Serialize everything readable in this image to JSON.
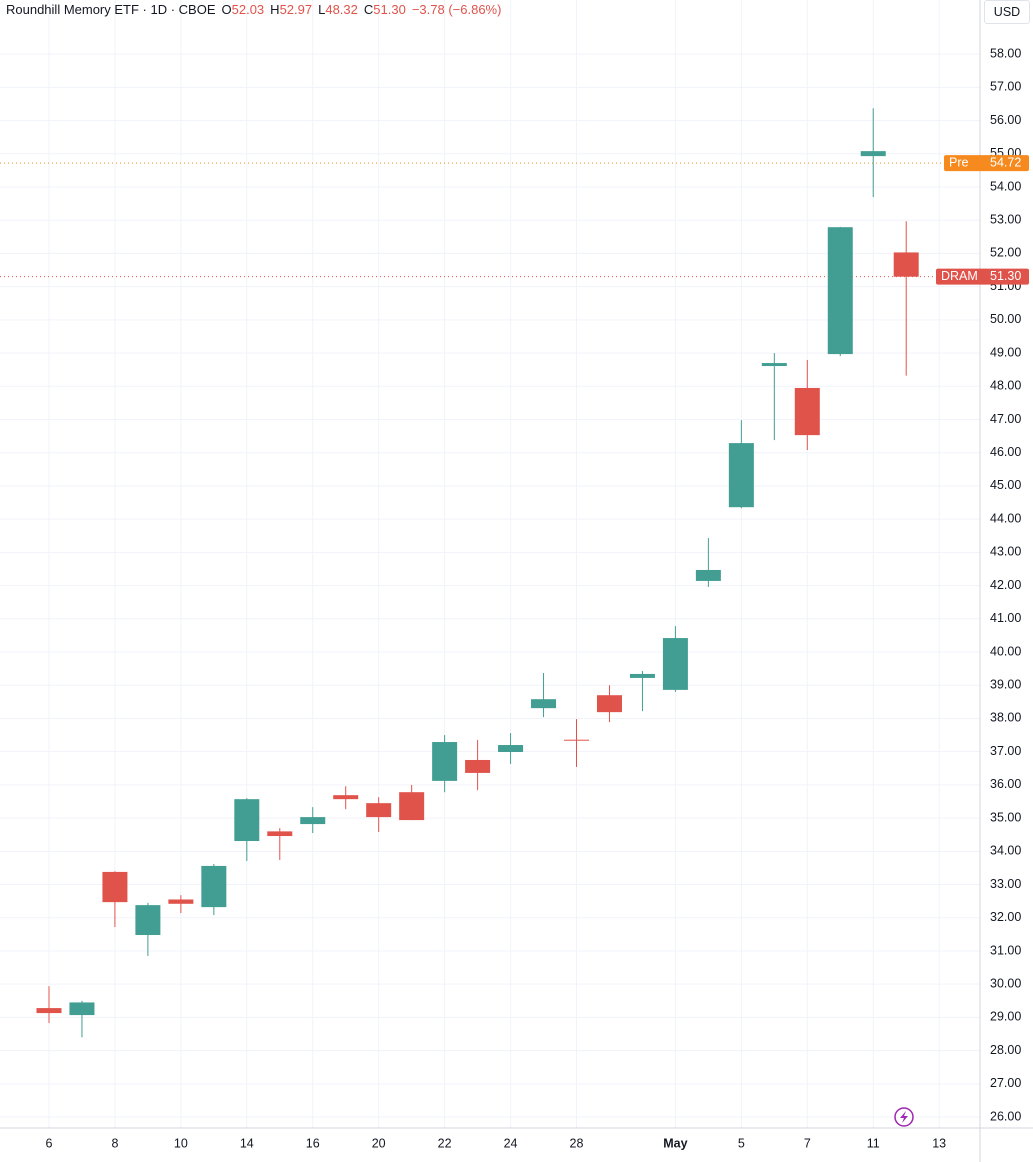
{
  "header": {
    "title": "Roundhill Memory ETF · 1D · CBOE",
    "ohlc": [
      {
        "key": "O",
        "value": "52.03"
      },
      {
        "key": "H",
        "value": "52.97"
      },
      {
        "key": "L",
        "value": "48.32"
      },
      {
        "key": "C",
        "value": "51.30"
      }
    ],
    "change": "−3.78 (−6.86%)"
  },
  "currency": "USD",
  "chart_data": {
    "type": "candlestick",
    "categories": [
      "6",
      null,
      "8",
      null,
      "10",
      null,
      "14",
      null,
      "16",
      null,
      "20",
      null,
      "22",
      null,
      "24",
      null,
      "28",
      null,
      null,
      "May",
      null,
      "5",
      null,
      "7",
      null,
      "11",
      null,
      "13"
    ],
    "open": [
      29.28,
      29.07,
      33.38,
      31.48,
      32.55,
      32.32,
      34.31,
      34.6,
      34.82,
      35.69,
      35.45,
      35.78,
      36.12,
      36.75,
      36.99,
      38.31,
      37.36,
      38.7,
      39.22,
      38.86,
      42.14,
      44.36,
      48.61,
      47.95,
      48.97,
      54.93,
      52.03,
      null
    ],
    "high": [
      29.94,
      29.5,
      33.4,
      32.45,
      32.68,
      33.62,
      35.6,
      34.7,
      35.33,
      35.96,
      35.63,
      36.0,
      37.5,
      37.35,
      37.56,
      39.37,
      37.98,
      39.0,
      39.43,
      40.78,
      43.43,
      46.98,
      49.0,
      48.79,
      52.8,
      56.37,
      52.97,
      null
    ],
    "low": [
      28.83,
      28.4,
      31.72,
      30.85,
      32.14,
      32.08,
      33.71,
      33.74,
      34.55,
      35.27,
      34.58,
      34.94,
      35.78,
      35.84,
      36.63,
      38.04,
      36.54,
      37.89,
      38.22,
      38.8,
      41.96,
      44.33,
      46.38,
      46.08,
      48.91,
      53.7,
      48.32,
      null
    ],
    "close": [
      29.13,
      29.45,
      32.47,
      32.38,
      32.42,
      33.56,
      35.57,
      34.46,
      35.03,
      35.57,
      35.03,
      34.94,
      37.29,
      36.36,
      37.2,
      38.58,
      37.34,
      38.19,
      39.34,
      40.42,
      42.47,
      46.29,
      48.7,
      46.53,
      52.79,
      55.08,
      51.3,
      null
    ],
    "up_color": "#429e92",
    "down_color": "#e0534b",
    "ylim": [
      25.67,
      59.63
    ],
    "yticks": [
      {
        "value": 26,
        "label": "26.00"
      },
      {
        "value": 27,
        "label": "27.00"
      },
      {
        "value": 28,
        "label": "28.00"
      },
      {
        "value": 29,
        "label": "29.00"
      },
      {
        "value": 30,
        "label": "30.00"
      },
      {
        "value": 31,
        "label": "31.00"
      },
      {
        "value": 32,
        "label": "32.00"
      },
      {
        "value": 33,
        "label": "33.00"
      },
      {
        "value": 34,
        "label": "34.00"
      },
      {
        "value": 35,
        "label": "35.00"
      },
      {
        "value": 36,
        "label": "36.00"
      },
      {
        "value": 37,
        "label": "37.00"
      },
      {
        "value": 38,
        "label": "38.00"
      },
      {
        "value": 39,
        "label": "39.00"
      },
      {
        "value": 40,
        "label": "40.00"
      },
      {
        "value": 41,
        "label": "41.00"
      },
      {
        "value": 42,
        "label": "42.00"
      },
      {
        "value": 43,
        "label": "43.00"
      },
      {
        "value": 44,
        "label": "44.00"
      },
      {
        "value": 45,
        "label": "45.00"
      },
      {
        "value": 46,
        "label": "46.00"
      },
      {
        "value": 47,
        "label": "47.00"
      },
      {
        "value": 48,
        "label": "48.00"
      },
      {
        "value": 49,
        "label": "49.00"
      },
      {
        "value": 50,
        "label": "50.00"
      },
      {
        "value": 51,
        "label": "51.00"
      },
      {
        "value": 52,
        "label": "52.00"
      },
      {
        "value": 53,
        "label": "53.00"
      },
      {
        "value": 54,
        "label": "54.00"
      },
      {
        "value": 55,
        "label": "55.00"
      },
      {
        "value": 56,
        "label": "56.00"
      },
      {
        "value": 57,
        "label": "57.00"
      },
      {
        "value": 58,
        "label": "58.00"
      }
    ],
    "grid": true,
    "price_lines": [
      {
        "name": "Pre",
        "value": 54.72,
        "label": "54.72",
        "color": "#f68a1e"
      },
      {
        "name": "DRAM",
        "value": 51.3,
        "label": "51.30",
        "color": "#e0534b"
      }
    ]
  }
}
